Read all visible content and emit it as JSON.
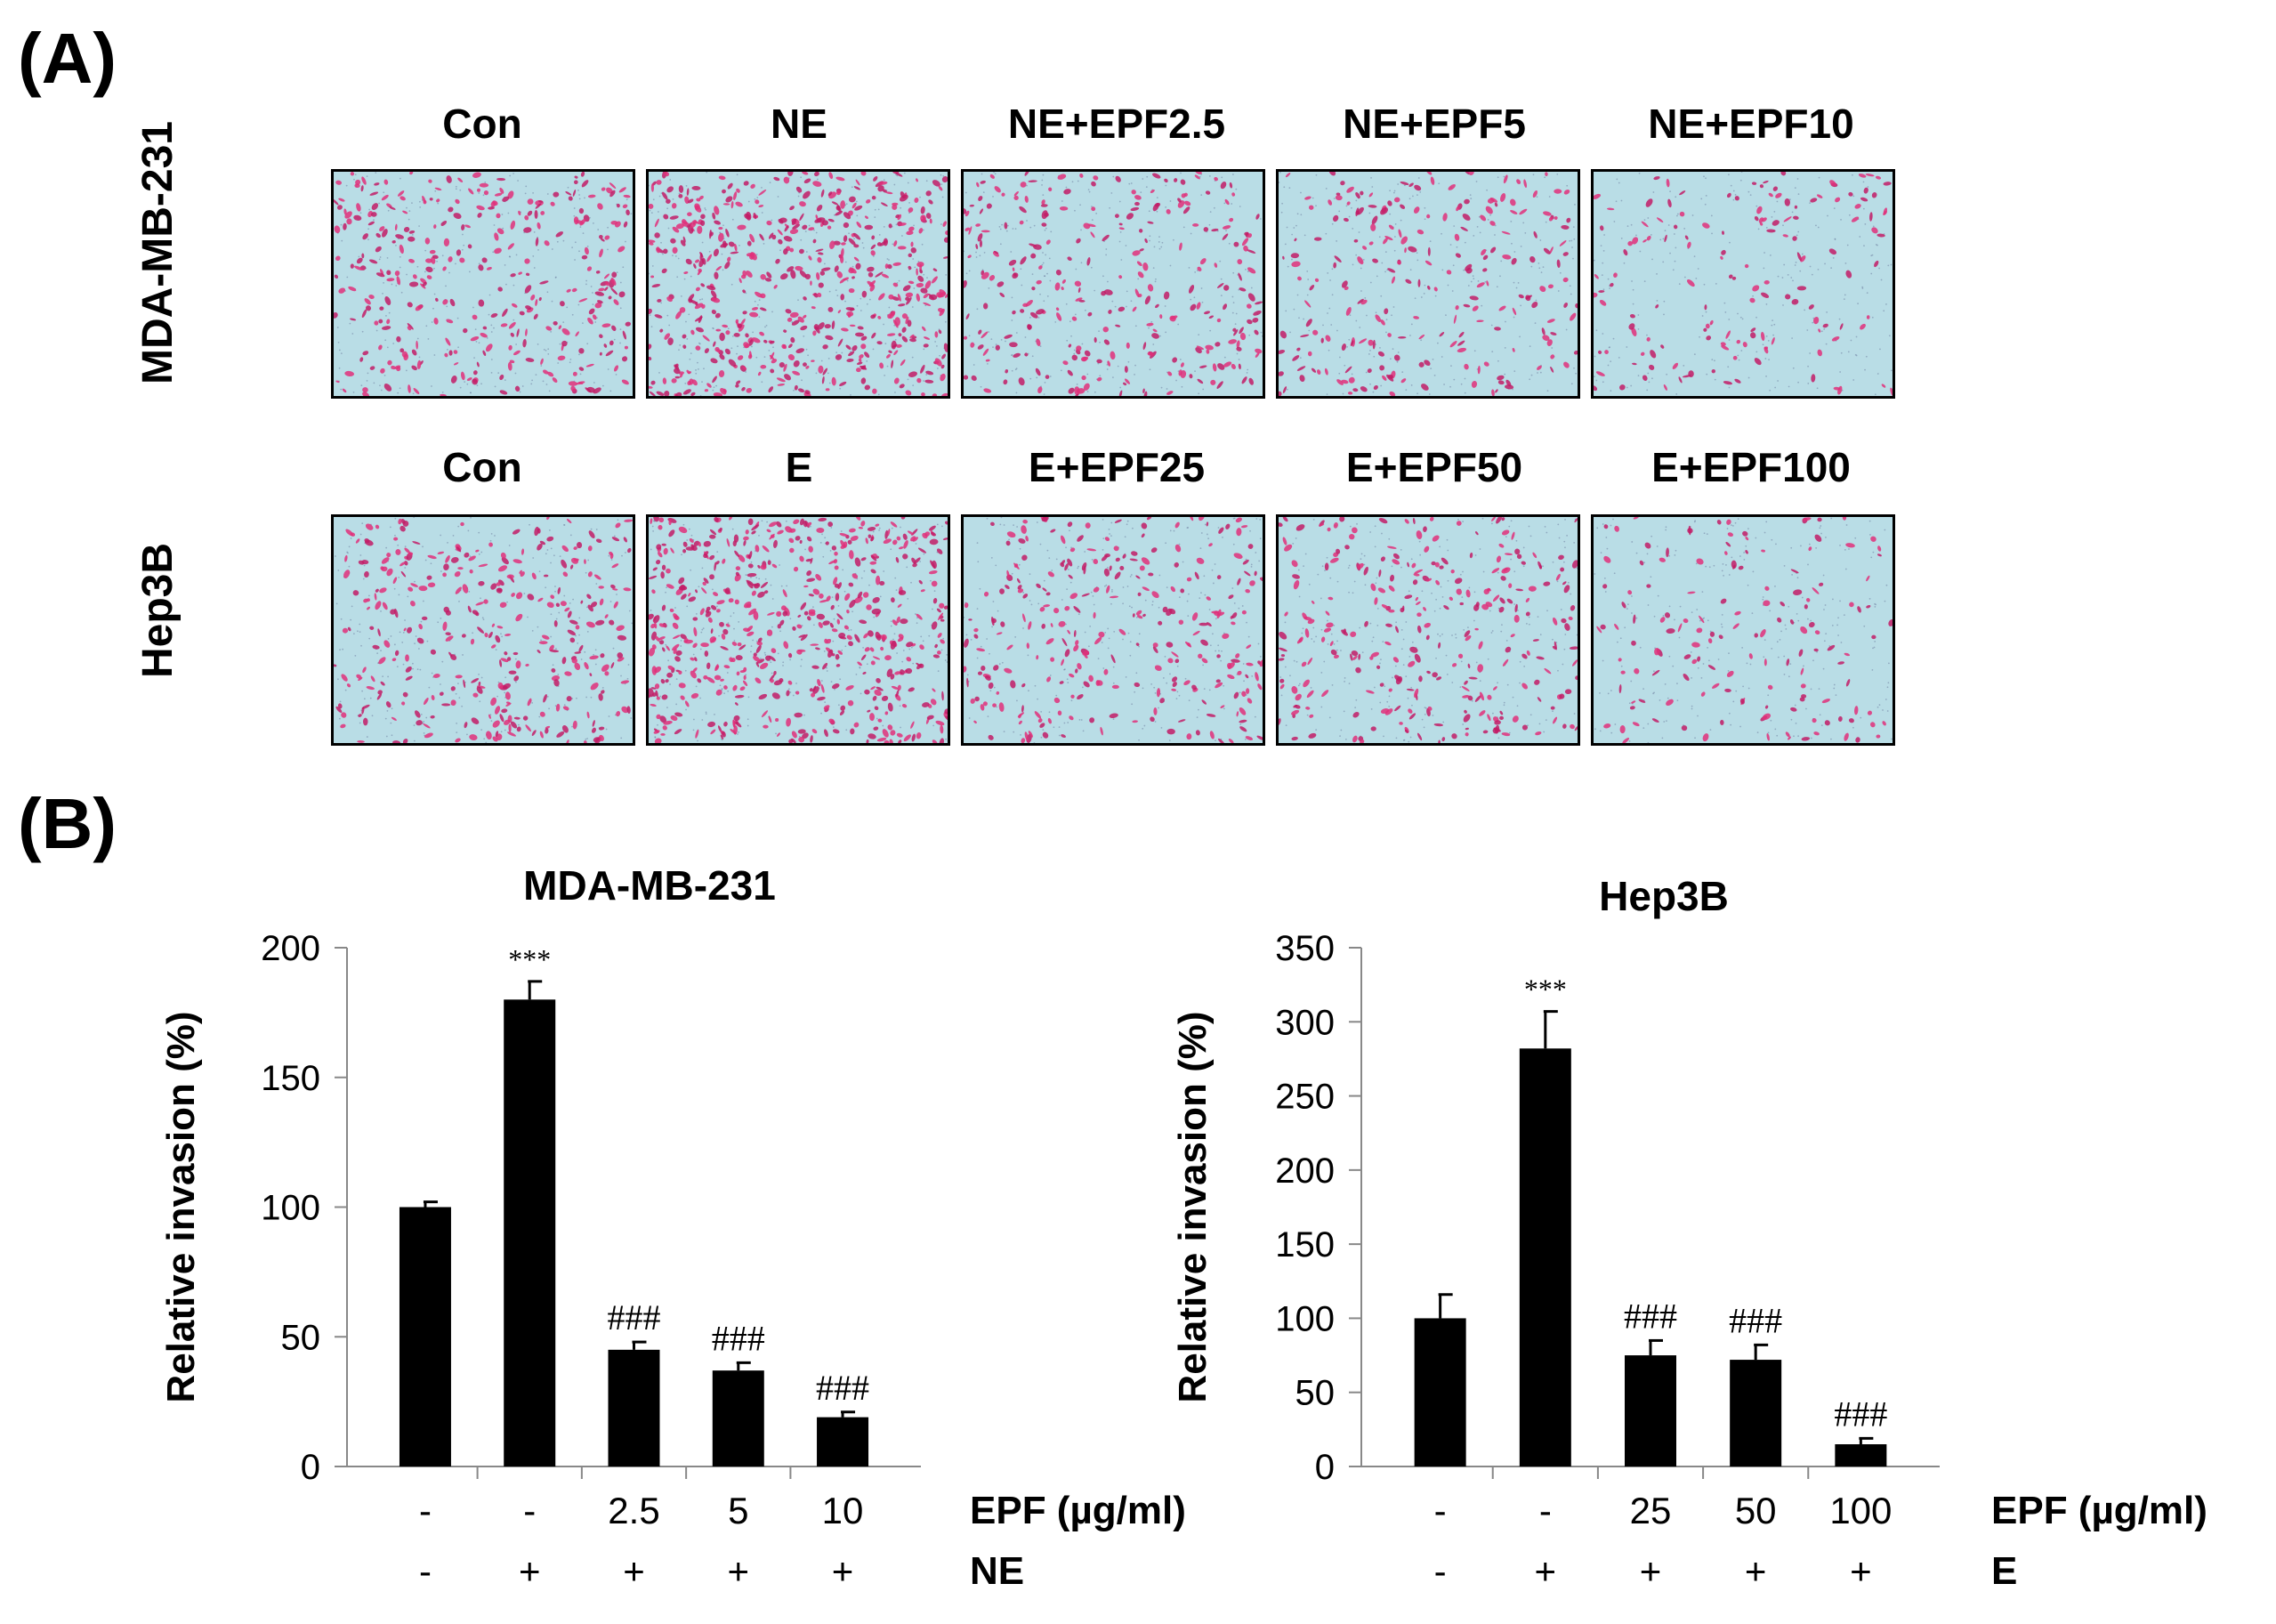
{
  "figure": {
    "panel_a_label": "(A)",
    "panel_b_label": "(B)",
    "rows": [
      {
        "label": "MDA-MB-231",
        "columns": [
          "Con",
          "NE",
          "NE+EPF2.5",
          "NE+EPF5",
          "NE+EPF10"
        ],
        "density": [
          0.55,
          1.0,
          0.45,
          0.35,
          0.2
        ]
      },
      {
        "label": "Hep3B",
        "columns": [
          "Con",
          "E",
          "E+EPF25",
          "E+EPF50",
          "E+EPF100"
        ],
        "density": [
          0.55,
          1.0,
          0.45,
          0.45,
          0.2
        ]
      }
    ],
    "image_colors": {
      "background": "#b9dde6",
      "cell": "#e0307a",
      "cell_alt": "#c21c66"
    }
  },
  "chart_data": [
    {
      "type": "bar",
      "title": "MDA-MB-231",
      "ylabel": "Relative invasion (%)",
      "ylim": [
        0,
        200
      ],
      "yticks": [
        0,
        50,
        100,
        150,
        200
      ],
      "values": [
        100,
        180,
        45,
        37,
        19
      ],
      "errors": [
        2,
        7,
        3,
        3,
        2
      ],
      "significance": [
        "",
        "***",
        "###",
        "###",
        "###"
      ],
      "treatment_rows": [
        {
          "label": "EPF (µg/ml)",
          "values": [
            "-",
            "-",
            "2.5",
            "5",
            "10"
          ]
        },
        {
          "label": "NE",
          "values": [
            "-",
            "+",
            "+",
            "+",
            "+"
          ]
        }
      ],
      "bar_color": "#000000"
    },
    {
      "type": "bar",
      "title": "Hep3B",
      "ylabel": "Relative invasion (%)",
      "ylim": [
        0,
        350
      ],
      "yticks": [
        0,
        50,
        100,
        150,
        200,
        250,
        300,
        350
      ],
      "values": [
        100,
        282,
        75,
        72,
        15
      ],
      "errors": [
        16,
        25,
        10,
        10,
        4
      ],
      "significance": [
        "",
        "***",
        "###",
        "###",
        "###"
      ],
      "treatment_rows": [
        {
          "label": "EPF (µg/ml)",
          "values": [
            "-",
            "-",
            "25",
            "50",
            "100"
          ]
        },
        {
          "label": "E",
          "values": [
            "-",
            "+",
            "+",
            "+",
            "+"
          ]
        }
      ],
      "bar_color": "#000000"
    }
  ]
}
